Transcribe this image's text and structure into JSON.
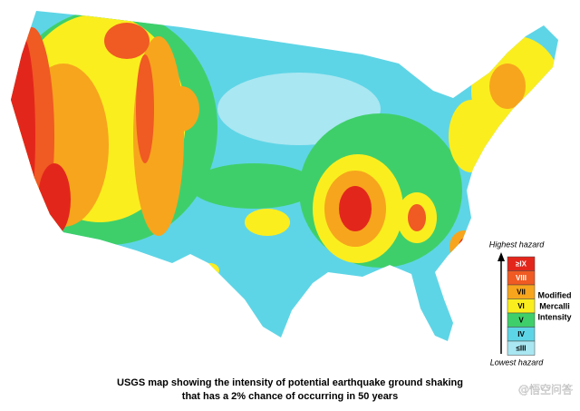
{
  "map": {
    "caption": [
      "USGS map showing the intensity of potential earthquake ground shaking",
      "that has a 2% chance of occurring in 50 years"
    ]
  },
  "legend": {
    "top_label": "Highest hazard",
    "bottom_label": "Lowest hazard",
    "title": [
      "Modified",
      "Mercalli",
      "Intensity"
    ],
    "levels": [
      {
        "label": "≥IX",
        "color": "#e3261c"
      },
      {
        "label": "VIII",
        "color": "#f05a23"
      },
      {
        "label": "VII",
        "color": "#f7a51d"
      },
      {
        "label": "VI",
        "color": "#fbee1f"
      },
      {
        "label": "V",
        "color": "#3fcf6a"
      },
      {
        "label": "IV",
        "color": "#5ed5e6"
      },
      {
        "label": "≤III",
        "color": "#a9e7f2"
      }
    ]
  },
  "watermark": "@悟空问答"
}
